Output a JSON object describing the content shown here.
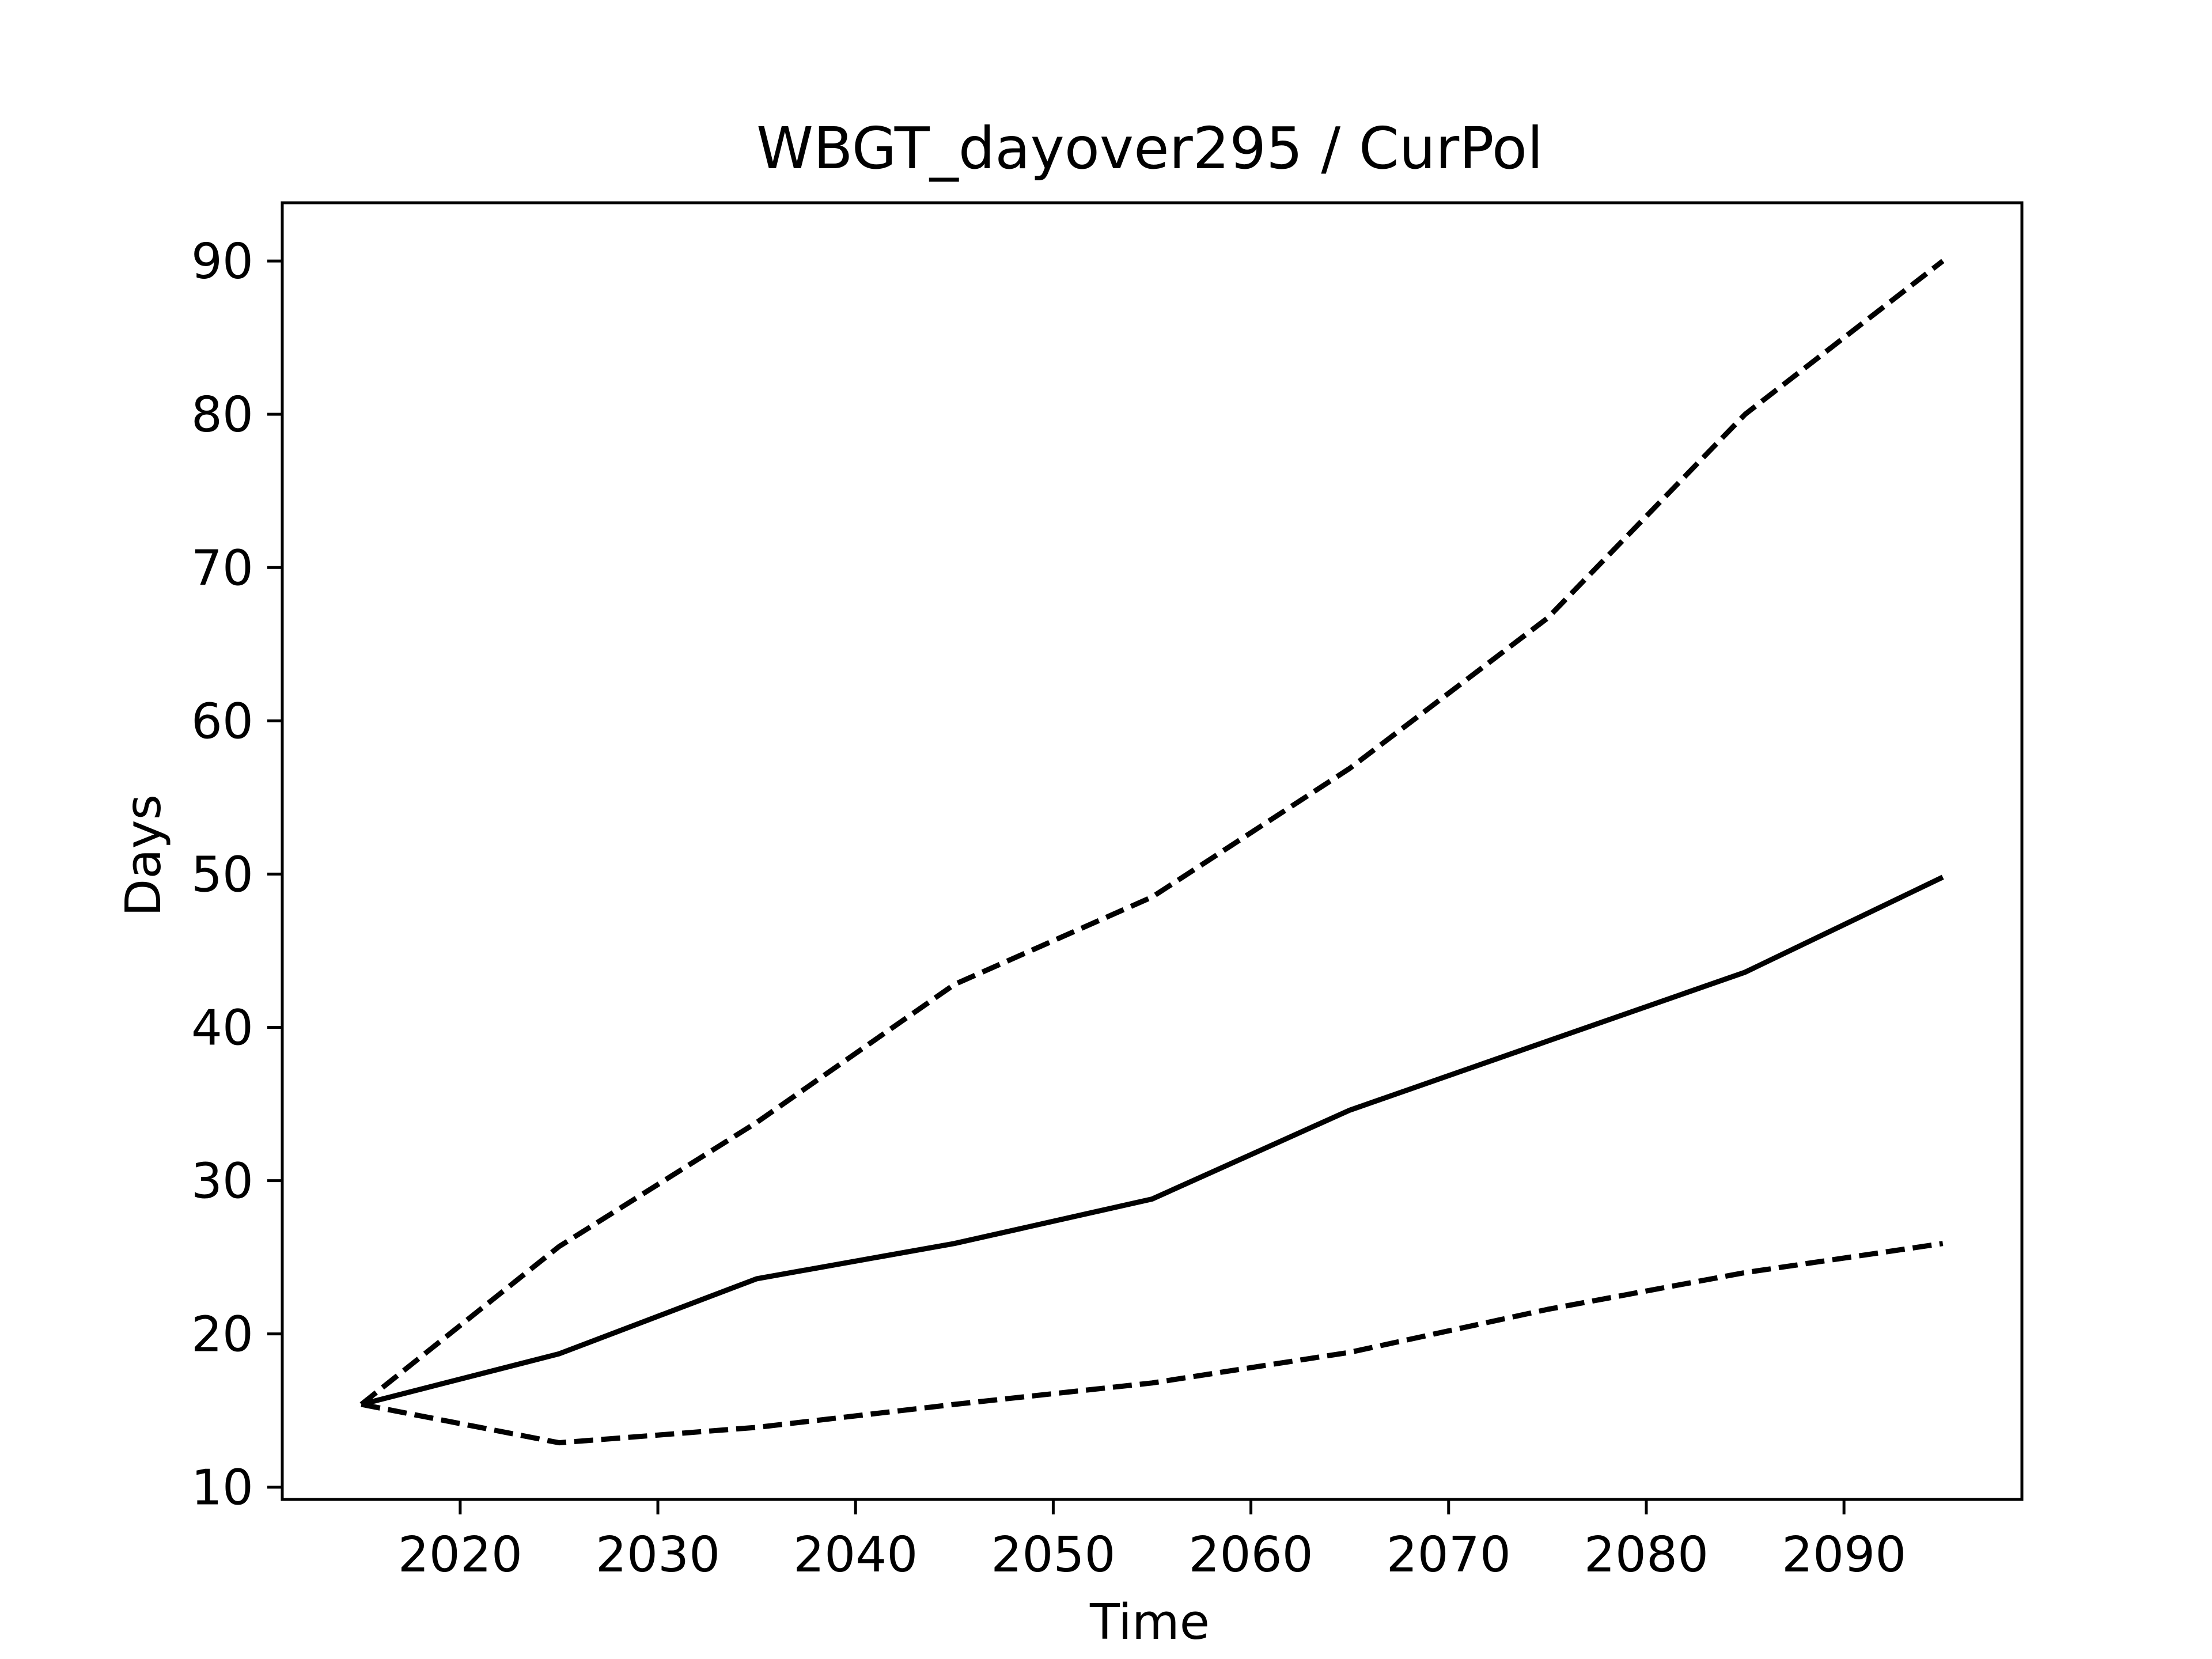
{
  "chart_data": {
    "type": "line",
    "title": "WBGT_dayover295 / CurPol",
    "xlabel": "Time",
    "ylabel": "Days",
    "x": [
      2015,
      2025,
      2035,
      2045,
      2055,
      2065,
      2075,
      2085,
      2095
    ],
    "xlim": [
      2011,
      2099
    ],
    "ylim": [
      9.2,
      93.8
    ],
    "xticks": [
      2020,
      2030,
      2040,
      2050,
      2060,
      2070,
      2080,
      2090
    ],
    "yticks": [
      10,
      20,
      30,
      40,
      50,
      60,
      70,
      80,
      90
    ],
    "grid": false,
    "legend": "none",
    "line_color": "#000000",
    "series": [
      {
        "style": "dashed",
        "values": [
          15.4,
          25.7,
          33.8,
          42.8,
          48.5,
          56.9,
          66.7,
          80.0,
          90.0
        ]
      },
      {
        "style": "solid",
        "values": [
          15.4,
          18.7,
          23.6,
          25.9,
          28.8,
          34.6,
          39.1,
          43.6,
          49.8
        ]
      },
      {
        "style": "dashed",
        "values": [
          15.4,
          12.9,
          13.9,
          15.4,
          16.8,
          18.8,
          21.6,
          24.0,
          25.9
        ]
      }
    ]
  }
}
